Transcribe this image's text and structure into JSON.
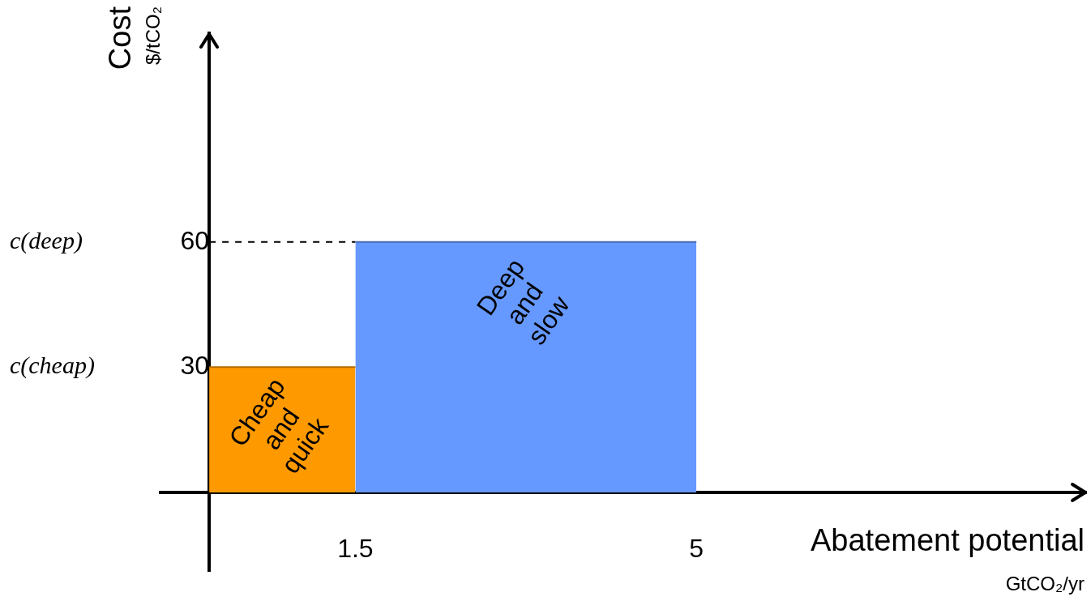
{
  "chart_data": {
    "type": "area",
    "xlabel": "Abatement potential GtCO₂/yr",
    "ylabel": "Cost $/tCO₂",
    "series": [
      {
        "name": "Cheap and quick",
        "color": "#ff9900",
        "x": [
          0,
          1.5
        ],
        "values": [
          30,
          30
        ]
      },
      {
        "name": "Deep and slow",
        "color": "#6699ff",
        "x": [
          1.5,
          5
        ],
        "values": [
          60,
          60
        ]
      }
    ],
    "xlim": [
      -0.5,
      9
    ],
    "ylim": [
      -19,
      110
    ],
    "xticks": [
      1.5,
      5
    ],
    "yticks": [
      30,
      60
    ],
    "ref_lines": [
      {
        "axis": "y",
        "value": 60,
        "line_style": "dashed",
        "color": "#000000"
      }
    ],
    "annotations": [
      "c(cheap)",
      "c(deep)"
    ],
    "grid": false,
    "legend": false
  }
}
